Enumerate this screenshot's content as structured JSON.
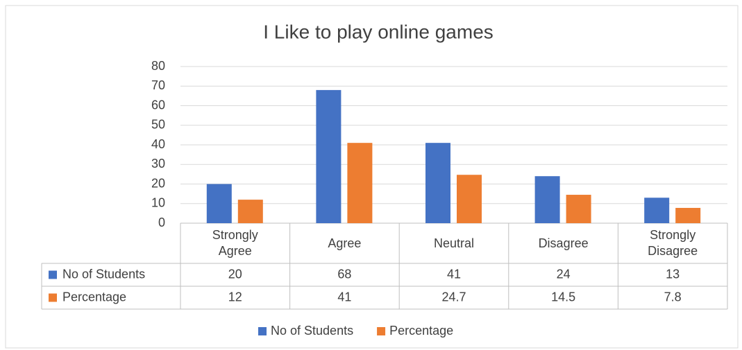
{
  "chart_data": {
    "type": "bar",
    "title": "I Like to play online games",
    "categories": [
      "Strongly Agree",
      "Agree",
      "Neutral",
      "Disagree",
      "Strongly Disagree"
    ],
    "series": [
      {
        "name": "No of Students",
        "color": "#4472c4",
        "values": [
          20,
          68,
          41,
          24,
          13
        ]
      },
      {
        "name": "Percentage",
        "color": "#ed7d31",
        "values": [
          12,
          41,
          24.7,
          14.5,
          7.8
        ]
      }
    ],
    "ylim": [
      0,
      80
    ],
    "yticks": [
      0,
      10,
      20,
      30,
      40,
      50,
      60,
      70,
      80
    ],
    "grid": true,
    "legend": "bottom"
  }
}
